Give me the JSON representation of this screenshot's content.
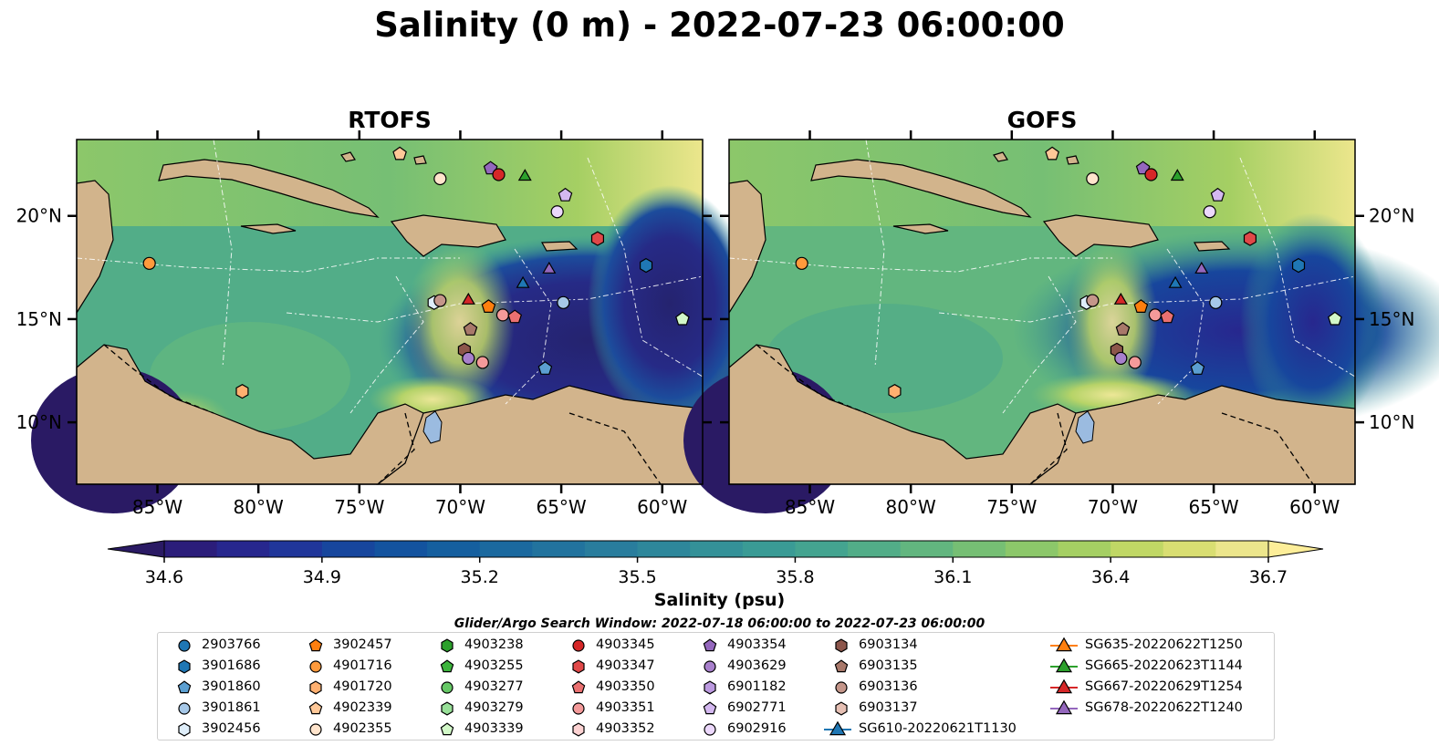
{
  "title": "Salinity (0 m) - 2022-07-23 06:00:00",
  "panels": [
    {
      "title": "RTOFS"
    },
    {
      "title": "GOFS"
    }
  ],
  "axes": {
    "lon_ticks": [
      "85°W",
      "80°W",
      "75°W",
      "70°W",
      "65°W",
      "60°W"
    ],
    "lat_ticks": [
      "20°N",
      "15°N",
      "10°N"
    ]
  },
  "colorbar": {
    "label": "Salinity (psu)",
    "ticks": [
      "34.6",
      "34.9",
      "35.2",
      "35.5",
      "35.8",
      "36.1",
      "36.4",
      "36.7"
    ],
    "range": [
      34.6,
      36.7
    ],
    "colormap": "haline",
    "colors": [
      "#2a1a64",
      "#2b1d7a",
      "#27278e",
      "#20369a",
      "#17469d",
      "#13539f",
      "#155f9f",
      "#1b699f",
      "#22739e",
      "#297d9d",
      "#2e879b",
      "#349198",
      "#3a9b95",
      "#44a490",
      "#52ad88",
      "#62b67f",
      "#76bf74",
      "#8cc76a",
      "#a5cf63",
      "#c0d765",
      "#d9de72",
      "#ece68c",
      "#fdee99"
    ]
  },
  "search_window": "Glider/Argo Search Window: 2022-07-18 06:00:00 to 2022-07-23 06:00:00",
  "legend": [
    {
      "label": "2903766",
      "marker": "circle",
      "color": "#1f77b4"
    },
    {
      "label": "3901686",
      "marker": "hexagon",
      "color": "#1f77b4"
    },
    {
      "label": "3901860",
      "marker": "pentagon",
      "color": "#5b9fd1"
    },
    {
      "label": "3901861",
      "marker": "circle",
      "color": "#a6c8e8"
    },
    {
      "label": "3902456",
      "marker": "hexagon",
      "color": "#dfeefa"
    },
    {
      "label": "3902457",
      "marker": "pentagon",
      "color": "#ff7f0e"
    },
    {
      "label": "4901716",
      "marker": "circle",
      "color": "#ff9a3c"
    },
    {
      "label": "4901720",
      "marker": "hexagon",
      "color": "#ffb070"
    },
    {
      "label": "4902339",
      "marker": "pentagon",
      "color": "#ffc898"
    },
    {
      "label": "4902355",
      "marker": "circle",
      "color": "#ffe4cc"
    },
    {
      "label": "4903238",
      "marker": "hexagon",
      "color": "#2ca02c"
    },
    {
      "label": "4903255",
      "marker": "pentagon",
      "color": "#3cb43c"
    },
    {
      "label": "4903277",
      "marker": "circle",
      "color": "#66c866"
    },
    {
      "label": "4903279",
      "marker": "hexagon",
      "color": "#98e098"
    },
    {
      "label": "4903339",
      "marker": "pentagon",
      "color": "#d2f8c8"
    },
    {
      "label": "4903345",
      "marker": "circle",
      "color": "#d62728"
    },
    {
      "label": "4903347",
      "marker": "hexagon",
      "color": "#e04848"
    },
    {
      "label": "4903350",
      "marker": "pentagon",
      "color": "#ea7070"
    },
    {
      "label": "4903351",
      "marker": "circle",
      "color": "#f49a9a"
    },
    {
      "label": "4903352",
      "marker": "hexagon",
      "color": "#fcd2d2"
    },
    {
      "label": "4903354",
      "marker": "pentagon",
      "color": "#9467bd"
    },
    {
      "label": "4903629",
      "marker": "circle",
      "color": "#a880cc"
    },
    {
      "label": "6901182",
      "marker": "hexagon",
      "color": "#bc9ae0"
    },
    {
      "label": "6902771",
      "marker": "pentagon",
      "color": "#d4b8f0"
    },
    {
      "label": "6902916",
      "marker": "circle",
      "color": "#ecd8fc"
    },
    {
      "label": "6903134",
      "marker": "hexagon",
      "color": "#8c564b"
    },
    {
      "label": "6903135",
      "marker": "pentagon",
      "color": "#a8786a"
    },
    {
      "label": "6903136",
      "marker": "circle",
      "color": "#c4968a"
    },
    {
      "label": "6903137",
      "marker": "hexagon",
      "color": "#e6c0b4"
    },
    {
      "label": "SG610-20220621T1130",
      "marker": "triangle-line",
      "color": "#1f77b4"
    },
    {
      "label": "SG635-20220622T1250",
      "marker": "triangle-line",
      "color": "#ff7f0e"
    },
    {
      "label": "SG665-20220623T1144",
      "marker": "triangle-line",
      "color": "#2ca02c"
    },
    {
      "label": "SG667-20220629T1254",
      "marker": "triangle-line",
      "color": "#d62728"
    },
    {
      "label": "SG678-20220622T1240",
      "marker": "triangle-line",
      "color": "#9467bd"
    }
  ],
  "observations": [
    {
      "id": "4902339",
      "lon": -73.0,
      "lat": 23.0
    },
    {
      "id": "4902355",
      "lon": -71.0,
      "lat": 21.8
    },
    {
      "id": "4903354",
      "lon": -68.5,
      "lat": 22.3
    },
    {
      "id": "4903345",
      "lon": -68.1,
      "lat": 22.0
    },
    {
      "id": "SG665-20220623T1144",
      "lon": -66.8,
      "lat": 21.9
    },
    {
      "id": "6902771",
      "lon": -64.8,
      "lat": 21.0
    },
    {
      "id": "6902916",
      "lon": -65.2,
      "lat": 20.2
    },
    {
      "id": "4903347",
      "lon": -63.2,
      "lat": 18.9
    },
    {
      "id": "4901716",
      "lon": -85.4,
      "lat": 17.7
    },
    {
      "id": "3901686",
      "lon": -60.8,
      "lat": 17.6
    },
    {
      "id": "SG678-20220622T1240",
      "lon": -65.6,
      "lat": 17.4
    },
    {
      "id": "SG610-20220621T1130",
      "lon": -66.9,
      "lat": 16.7
    },
    {
      "id": "SG667-20220629T1254",
      "lon": -69.6,
      "lat": 15.9
    },
    {
      "id": "3902457",
      "lon": -68.6,
      "lat": 15.6
    },
    {
      "id": "3902456",
      "lon": -71.3,
      "lat": 15.8
    },
    {
      "id": "6903136",
      "lon": -71.0,
      "lat": 15.9
    },
    {
      "id": "3901861",
      "lon": -64.9,
      "lat": 15.8
    },
    {
      "id": "4903351",
      "lon": -67.9,
      "lat": 15.2
    },
    {
      "id": "4903350",
      "lon": -67.3,
      "lat": 15.1
    },
    {
      "id": "6903135",
      "lon": -69.5,
      "lat": 14.5
    },
    {
      "id": "4903339",
      "lon": -59.0,
      "lat": 15.0
    },
    {
      "id": "6903134",
      "lon": -69.8,
      "lat": 13.5
    },
    {
      "id": "4903629",
      "lon": -69.6,
      "lat": 13.1
    },
    {
      "id": "4903351",
      "lon": -68.9,
      "lat": 12.9
    },
    {
      "id": "3901860",
      "lon": -65.8,
      "lat": 12.6
    },
    {
      "id": "4901720",
      "lon": -80.8,
      "lat": 11.5
    }
  ]
}
